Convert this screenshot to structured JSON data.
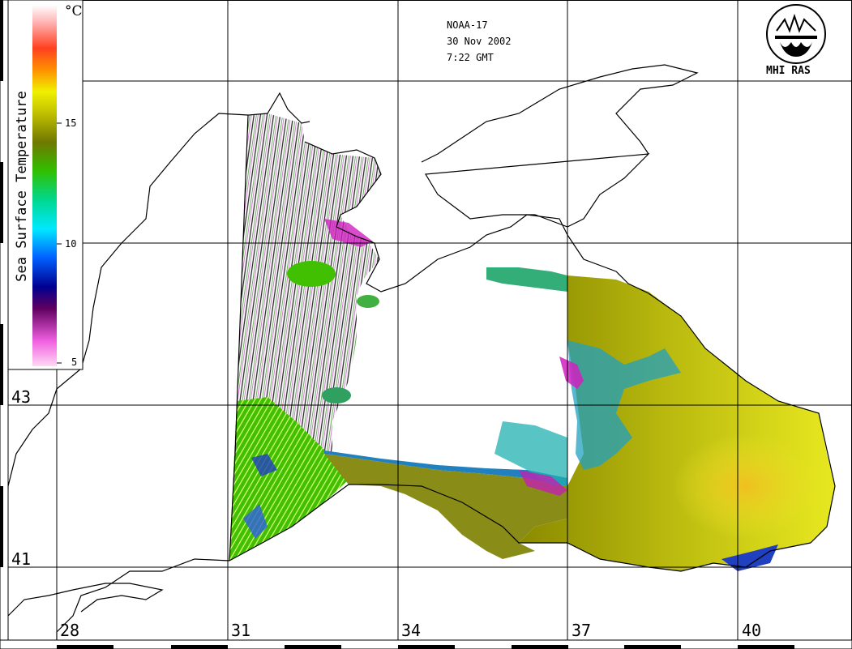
{
  "header": {
    "satellite": "NOAA-17",
    "date": "30 Nov 2002",
    "time": "7:22 GMT"
  },
  "logo": {
    "text": "MHI RAS",
    "icon": "mhi-ras-logo-icon"
  },
  "colorbar": {
    "title": "Sea Surface Temperature",
    "unit": "°C",
    "ticks": [
      "15",
      "10",
      "5"
    ],
    "range": [
      5,
      20
    ],
    "colors": [
      "#ffc8f0",
      "#e000c8",
      "#500050",
      "#0000a0",
      "#0050ff",
      "#00e8ff",
      "#00d890",
      "#40c000",
      "#808000",
      "#e8e800",
      "#ff8000",
      "#ff2000",
      "#ffe0e0"
    ]
  },
  "axes": {
    "latitude_labels": [
      "43",
      "41"
    ],
    "longitude_labels": [
      "28",
      "31",
      "34",
      "37",
      "40"
    ]
  },
  "colors": {
    "coastline": "#000000",
    "grid": "#000000",
    "land": "#ffffff",
    "sst_cold": "#e000c8",
    "sst_mid": "#40c000",
    "sst_warm": "#e8e800"
  }
}
